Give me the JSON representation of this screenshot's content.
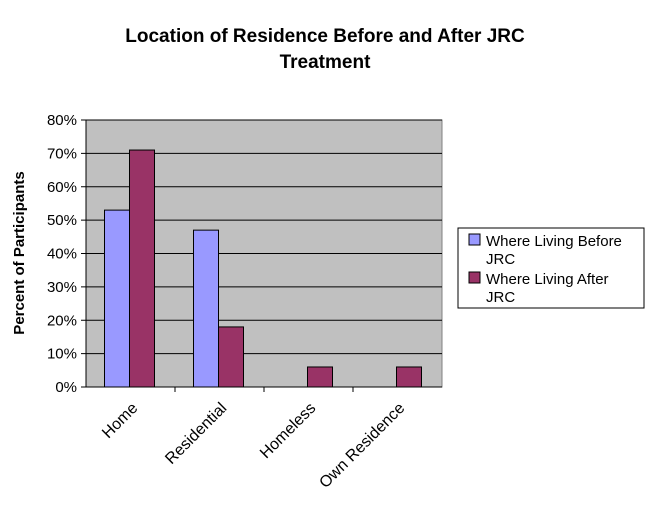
{
  "chart_data": {
    "type": "bar",
    "title_lines": [
      "Location of Residence Before and After JRC",
      "Treatment"
    ],
    "ylabel": "Percent of Participants",
    "xlabel": "",
    "categories": [
      "Home",
      "Residential",
      "Homeless",
      "Own Residence"
    ],
    "yticks": [
      "0%",
      "10%",
      "20%",
      "30%",
      "40%",
      "50%",
      "60%",
      "70%",
      "80%"
    ],
    "ylim": [
      0,
      80
    ],
    "grid": true,
    "legend_position": "right",
    "series": [
      {
        "name_lines": [
          "Where Living Before",
          "JRC"
        ],
        "values": [
          53,
          47,
          0,
          0
        ],
        "color": "#9999ff"
      },
      {
        "name_lines": [
          "Where Living After",
          "JRC"
        ],
        "values": [
          71,
          18,
          6,
          6
        ],
        "color": "#993366"
      }
    ],
    "plot_background": "#c0c0c0"
  }
}
